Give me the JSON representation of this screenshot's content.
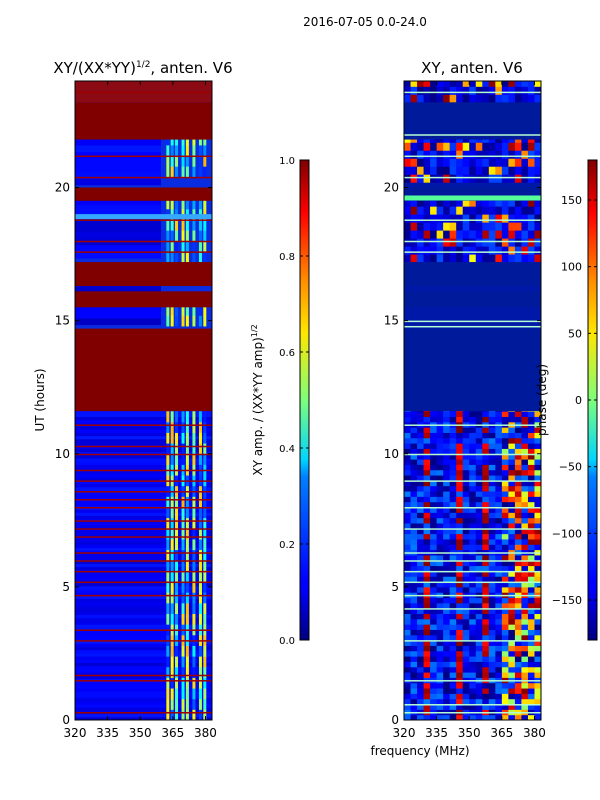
{
  "figure_title": "2016-07-05 0.0-24.0",
  "chart_data": [
    {
      "type": "heatmap",
      "panel": "left",
      "title_main": "XY/(XX*YY)",
      "title_sup": "1/2",
      "title_tail": ", anten. V6",
      "ylabel": "UT (hours)",
      "ylim": [
        0,
        24
      ],
      "xlim": [
        320,
        383
      ],
      "xticks": [
        320,
        335,
        350,
        365,
        380
      ],
      "yticks": [
        0,
        5,
        10,
        15,
        20
      ],
      "colormap": "jet",
      "colorbar": {
        "label_main": "XY amp. / (XX*YY amp)",
        "label_sup": "1/2",
        "range": [
          0.0,
          1.0
        ],
        "ticks": [
          "0.0",
          "0.2",
          "0.4",
          "0.6",
          "0.8",
          "1.0"
        ]
      },
      "full_bands": [
        [
          11.6,
          14.7
        ],
        [
          15.5,
          16.1
        ],
        [
          16.3,
          17.2
        ],
        [
          19.5,
          20.0
        ],
        [
          21.8,
          23.2
        ]
      ],
      "lines": [
        0.3,
        1.5,
        1.7,
        3.0,
        3.4,
        4.7,
        5.2,
        5.6,
        6.0,
        6.3,
        6.9,
        7.2,
        7.5,
        8.0,
        8.3,
        8.6,
        9.0,
        9.4,
        10.0,
        10.3,
        11.1,
        17.6,
        18.0,
        18.8,
        20.4,
        21.2,
        23.6
      ],
      "rfi_channels": [
        362,
        364,
        366,
        369,
        371,
        374,
        377,
        379
      ]
    },
    {
      "type": "heatmap",
      "panel": "right",
      "title": "XY, anten. V6",
      "xlabel": "frequency (MHz)",
      "ylim": [
        0,
        24
      ],
      "xlim": [
        320,
        383
      ],
      "xticks": [
        320,
        335,
        350,
        365,
        380
      ],
      "yticks": [
        0,
        5,
        10,
        15,
        20
      ],
      "colormap": "jet",
      "colorbar": {
        "label": "phase (deg)",
        "range": [
          -180,
          180
        ],
        "ticks": [
          "150",
          "100",
          "50",
          "0",
          "−50",
          "−100",
          "−150"
        ]
      },
      "bands": [
        [
          11.6,
          14.7
        ],
        [
          15.5,
          16.1
        ],
        [
          16.3,
          17.2
        ],
        [
          19.5,
          20.0
        ],
        [
          21.8,
          23.2
        ]
      ],
      "lines": [
        0.3,
        0.6,
        1.5,
        3.0,
        4.2,
        4.7,
        5.2,
        5.6,
        6.0,
        6.3,
        7.2,
        8.0,
        9.0,
        10.0,
        11.1,
        14.8,
        15.0,
        17.6,
        18.0,
        18.8,
        20.4,
        21.2,
        22.0,
        23.6
      ]
    }
  ]
}
